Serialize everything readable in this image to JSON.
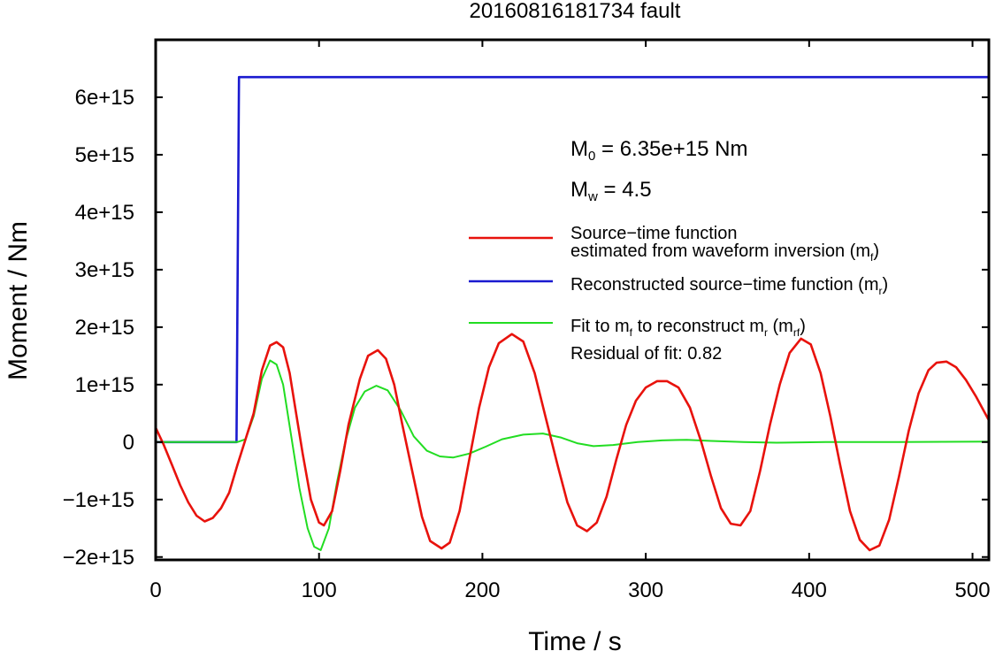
{
  "chart_data": {
    "type": "line",
    "title": "20160816181734 fault",
    "xlabel": "Time / s",
    "ylabel": "Moment / Nm",
    "xlim": [
      0,
      510
    ],
    "ylim": [
      -2050000000000000.0,
      7000000000000000.0
    ],
    "xticks": [
      {
        "value": 0,
        "label": "0"
      },
      {
        "value": 100,
        "label": "100"
      },
      {
        "value": 200,
        "label": "200"
      },
      {
        "value": 300,
        "label": "300"
      },
      {
        "value": 400,
        "label": "400"
      },
      {
        "value": 500,
        "label": "500"
      }
    ],
    "yticks": [
      {
        "value": -2000000000000000.0,
        "label": "−2e+15"
      },
      {
        "value": -1000000000000000.0,
        "label": "−1e+15"
      },
      {
        "value": 0,
        "label": "0"
      },
      {
        "value": 1000000000000000.0,
        "label": "1e+15"
      },
      {
        "value": 2000000000000000.0,
        "label": "2e+15"
      },
      {
        "value": 3000000000000000.0,
        "label": "3e+15"
      },
      {
        "value": 4000000000000000.0,
        "label": "4e+15"
      },
      {
        "value": 5000000000000000.0,
        "label": "5e+15"
      },
      {
        "value": 6000000000000000.0,
        "label": "6e+15"
      }
    ],
    "grid": false,
    "legend_position": "right",
    "annotations": {
      "m0": {
        "symbol": "M",
        "sub": "0",
        "text": " = 6.35e+15 Nm"
      },
      "mw": {
        "symbol": "M",
        "sub": "w",
        "text": " = 4.5"
      },
      "residual": "Residual of fit: 0.82"
    },
    "series": [
      {
        "id": "mf",
        "color": "#e8120c",
        "legend": [
          {
            "line": "Source−time function"
          },
          {
            "line": "estimated from waveform inversion (m",
            "sub": "f",
            "tail": ")"
          }
        ],
        "points": [
          [
            0,
            250000000000000.0
          ],
          [
            5,
            -50000000000000.0
          ],
          [
            10,
            -400000000000000.0
          ],
          [
            15,
            -750000000000000.0
          ],
          [
            20,
            -1050000000000000.0
          ],
          [
            25,
            -1280000000000000.0
          ],
          [
            30,
            -1380000000000000.0
          ],
          [
            35,
            -1320000000000000.0
          ],
          [
            40,
            -1150000000000000.0
          ],
          [
            45,
            -880000000000000.0
          ],
          [
            50,
            -400000000000000.0
          ],
          [
            55,
            50000000000000.0
          ],
          [
            60,
            500000000000000.0
          ],
          [
            65,
            1250000000000000.0
          ],
          [
            70,
            1680000000000000.0
          ],
          [
            74,
            1740000000000000.0
          ],
          [
            78,
            1650000000000000.0
          ],
          [
            82,
            1200000000000000.0
          ],
          [
            86,
            500000000000000.0
          ],
          [
            90,
            -200000000000000.0
          ],
          [
            95,
            -1000000000000000.0
          ],
          [
            100,
            -1400000000000000.0
          ],
          [
            103,
            -1450000000000000.0
          ],
          [
            108,
            -1200000000000000.0
          ],
          [
            113,
            -500000000000000.0
          ],
          [
            118,
            300000000000000.0
          ],
          [
            125,
            1100000000000000.0
          ],
          [
            130,
            1500000000000000.0
          ],
          [
            136,
            1600000000000000.0
          ],
          [
            141,
            1450000000000000.0
          ],
          [
            146,
            1000000000000000.0
          ],
          [
            151,
            300000000000000.0
          ],
          [
            157,
            -500000000000000.0
          ],
          [
            163,
            -1300000000000000.0
          ],
          [
            168,
            -1720000000000000.0
          ],
          [
            175,
            -1850000000000000.0
          ],
          [
            180,
            -1750000000000000.0
          ],
          [
            186,
            -1200000000000000.0
          ],
          [
            192,
            -300000000000000.0
          ],
          [
            198,
            600000000000000.0
          ],
          [
            204,
            1300000000000000.0
          ],
          [
            210,
            1720000000000000.0
          ],
          [
            218,
            1880000000000000.0
          ],
          [
            225,
            1750000000000000.0
          ],
          [
            232,
            1200000000000000.0
          ],
          [
            239,
            400000000000000.0
          ],
          [
            246,
            -400000000000000.0
          ],
          [
            252,
            -1050000000000000.0
          ],
          [
            258,
            -1450000000000000.0
          ],
          [
            264,
            -1550000000000000.0
          ],
          [
            270,
            -1400000000000000.0
          ],
          [
            276,
            -950000000000000.0
          ],
          [
            282,
            -300000000000000.0
          ],
          [
            288,
            300000000000000.0
          ],
          [
            294,
            720000000000000.0
          ],
          [
            300,
            950000000000000.0
          ],
          [
            307,
            1060000000000000.0
          ],
          [
            313,
            1060000000000000.0
          ],
          [
            320,
            950000000000000.0
          ],
          [
            327,
            600000000000000.0
          ],
          [
            334,
            0.0
          ],
          [
            340,
            -600000000000000.0
          ],
          [
            346,
            -1150000000000000.0
          ],
          [
            352,
            -1420000000000000.0
          ],
          [
            358,
            -1450000000000000.0
          ],
          [
            364,
            -1200000000000000.0
          ],
          [
            370,
            -500000000000000.0
          ],
          [
            376,
            300000000000000.0
          ],
          [
            382,
            1000000000000000.0
          ],
          [
            388,
            1550000000000000.0
          ],
          [
            395,
            1800000000000000.0
          ],
          [
            401,
            1700000000000000.0
          ],
          [
            407,
            1200000000000000.0
          ],
          [
            413,
            450000000000000.0
          ],
          [
            419,
            -400000000000000.0
          ],
          [
            425,
            -1200000000000000.0
          ],
          [
            431,
            -1700000000000000.0
          ],
          [
            437,
            -1880000000000000.0
          ],
          [
            443,
            -1800000000000000.0
          ],
          [
            449,
            -1350000000000000.0
          ],
          [
            455,
            -600000000000000.0
          ],
          [
            461,
            200000000000000.0
          ],
          [
            467,
            850000000000000.0
          ],
          [
            473,
            1250000000000000.0
          ],
          [
            478,
            1380000000000000.0
          ],
          [
            484,
            1400000000000000.0
          ],
          [
            490,
            1300000000000000.0
          ],
          [
            496,
            1080000000000000.0
          ],
          [
            502,
            800000000000000.0
          ],
          [
            510,
            380000000000000.0
          ]
        ]
      },
      {
        "id": "mr",
        "color": "#1a1ad0",
        "legend": [
          {
            "line": "Reconstructed source−time function (m",
            "sub": "r",
            "tail": ")"
          }
        ],
        "points": [
          [
            0,
            0
          ],
          [
            49.5,
            0
          ],
          [
            51,
            6350000000000000.0
          ],
          [
            510,
            6350000000000000.0
          ]
        ]
      },
      {
        "id": "mrf",
        "color": "#22dd22",
        "legend": [
          {
            "line": "Fit to m",
            "sub": "f",
            "mid": " to reconstruct m",
            "sub2": "r",
            "tail": " (m",
            "sub3": "rf",
            "tail2": ")"
          }
        ],
        "points": [
          [
            0,
            0
          ],
          [
            50,
            0
          ],
          [
            55,
            50000000000000.0
          ],
          [
            60,
            450000000000000.0
          ],
          [
            65,
            1100000000000000.0
          ],
          [
            70,
            1420000000000000.0
          ],
          [
            74,
            1350000000000000.0
          ],
          [
            78,
            1000000000000000.0
          ],
          [
            83,
            100000000000000.0
          ],
          [
            88,
            -800000000000000.0
          ],
          [
            93,
            -1500000000000000.0
          ],
          [
            97,
            -1820000000000000.0
          ],
          [
            101,
            -1880000000000000.0
          ],
          [
            106,
            -1500000000000000.0
          ],
          [
            111,
            -700000000000000.0
          ],
          [
            116,
            0.0
          ],
          [
            122,
            600000000000000.0
          ],
          [
            128,
            880000000000000.0
          ],
          [
            135,
            980000000000000.0
          ],
          [
            142,
            900000000000000.0
          ],
          [
            150,
            550000000000000.0
          ],
          [
            158,
            100000000000000.0
          ],
          [
            166,
            -150000000000000.0
          ],
          [
            174,
            -250000000000000.0
          ],
          [
            182,
            -270000000000000.0
          ],
          [
            192,
            -200000000000000.0
          ],
          [
            202,
            -80000000000000.0
          ],
          [
            212,
            50000000000000.0
          ],
          [
            225,
            130000000000000.0
          ],
          [
            237,
            150000000000000.0
          ],
          [
            248,
            80000000000000.0
          ],
          [
            258,
            -20000000000000.0
          ],
          [
            268,
            -70000000000000.0
          ],
          [
            280,
            -50000000000000.0
          ],
          [
            295,
            0.0
          ],
          [
            310,
            30000000000000.0
          ],
          [
            325,
            40000000000000.0
          ],
          [
            340,
            20000000000000.0
          ],
          [
            360,
            0.0
          ],
          [
            380,
            -10000000000000.0
          ],
          [
            410,
            0.0
          ],
          [
            450,
            0.0
          ],
          [
            510,
            10000000000000.0
          ]
        ]
      }
    ]
  }
}
